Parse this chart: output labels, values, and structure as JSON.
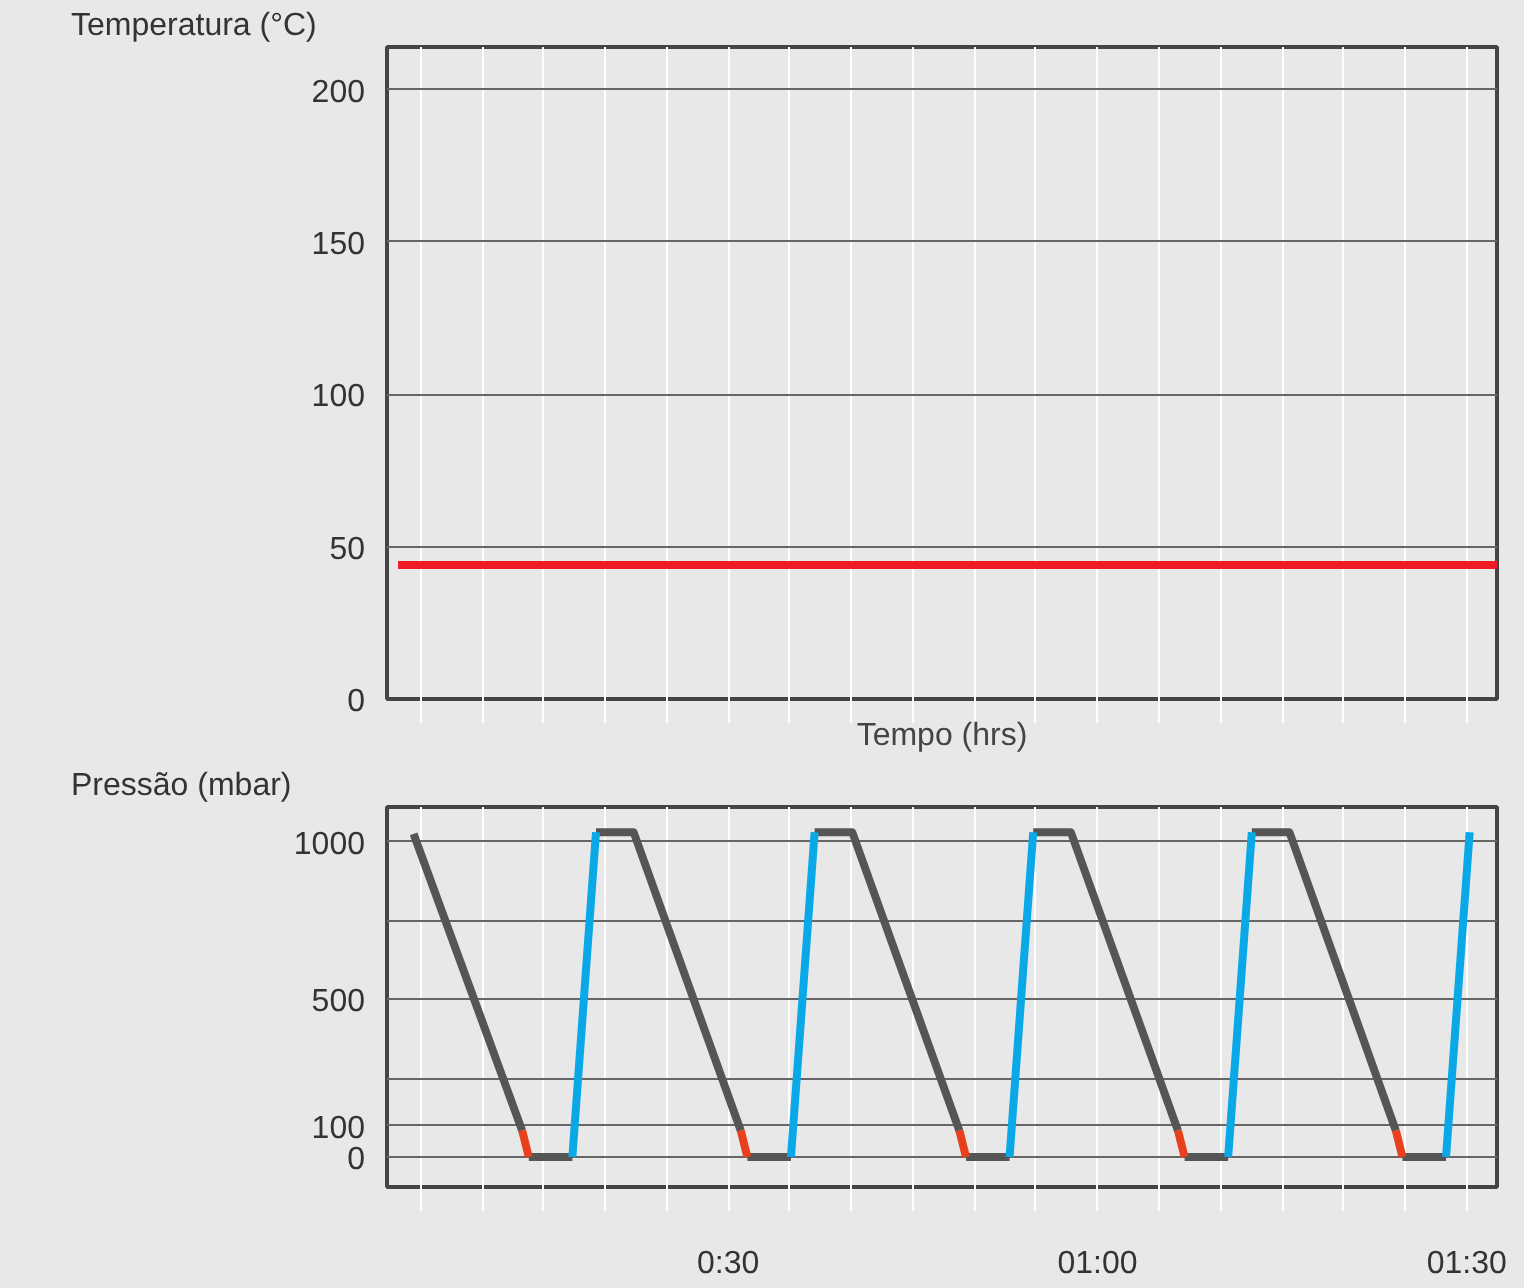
{
  "chart_data": [
    {
      "type": "line",
      "ylabel": "Temperatura (°C)",
      "xlabel": "Tempo (hrs)",
      "xlim": [
        0.038,
        1.541
      ],
      "ylim": [
        0,
        214
      ],
      "yticks": [
        0,
        50,
        100,
        150,
        200
      ],
      "xticks": [
        {
          "value": 0.0833,
          "label": null
        },
        {
          "value": 0.1667,
          "label": null
        },
        {
          "value": 0.25,
          "label": null
        },
        {
          "value": 0.3333,
          "label": null
        },
        {
          "value": 0.4167,
          "label": null
        },
        {
          "value": 0.5,
          "label": null
        },
        {
          "value": 0.5833,
          "label": null
        },
        {
          "value": 0.6667,
          "label": null
        },
        {
          "value": 0.75,
          "label": null
        },
        {
          "value": 0.8333,
          "label": null
        },
        {
          "value": 0.9167,
          "label": null
        },
        {
          "value": 1,
          "label": null
        },
        {
          "value": 1.0833,
          "label": null
        },
        {
          "value": 1.1667,
          "label": null
        },
        {
          "value": 1.25,
          "label": null
        },
        {
          "value": 1.3333,
          "label": null
        },
        {
          "value": 1.4167,
          "label": null
        },
        {
          "value": 1.5,
          "label": null
        }
      ],
      "tick_labels": "y",
      "grid": true,
      "marker": "none",
      "series": [
        {
          "color": "#ee1c25",
          "x": [
            0.053,
            1.541
          ],
          "values": [
            44,
            44
          ]
        }
      ]
    },
    {
      "type": "line",
      "ylabel": "Pressão (mbar)",
      "xlim": [
        0.038,
        1.541
      ],
      "ylim": [
        -95,
        1110
      ],
      "yticks": [
        0,
        100,
        {
          "value": 250,
          "label": null
        },
        500,
        {
          "value": 750,
          "label": null
        },
        1000
      ],
      "xticks": [
        {
          "value": 0.0833,
          "label": null
        },
        {
          "value": 0.1667,
          "label": null
        },
        {
          "value": 0.25,
          "label": null
        },
        {
          "value": 0.3333,
          "label": null
        },
        {
          "value": 0.4167,
          "label": null
        },
        {
          "value": 0.5,
          "label": "0:30"
        },
        {
          "value": 0.5833,
          "label": null
        },
        {
          "value": 0.6667,
          "label": null
        },
        {
          "value": 0.75,
          "label": null
        },
        {
          "value": 0.8333,
          "label": null
        },
        {
          "value": 0.9167,
          "label": null
        },
        {
          "value": 1,
          "label": "01:00"
        },
        {
          "value": 1.0833,
          "label": null
        },
        {
          "value": 1.1667,
          "label": null
        },
        {
          "value": 1.25,
          "label": null
        },
        {
          "value": 1.3333,
          "label": null
        },
        {
          "value": 1.4167,
          "label": null
        },
        {
          "value": 1.5,
          "label": "01:30"
        }
      ],
      "grid": true,
      "marker": "none",
      "series": [
        {
          "color": "#555555",
          "x": [
            0.074,
            0.221,
            0.225,
            0.23,
            0.289,
            0.305,
            0.321,
            0.372,
            0.517,
            0.521,
            0.526,
            0.585,
            0.601,
            0.617,
            0.668,
            0.813,
            0.817,
            0.822,
            0.881,
            0.897,
            0.913,
            0.964,
            1.109,
            1.113,
            1.118,
            1.177,
            1.193,
            1.209,
            1.26,
            1.404,
            1.408,
            1.413,
            1.472
          ],
          "values": [
            1025,
            84,
            null,
            0,
            0,
            null,
            1030,
            1030,
            84,
            null,
            0,
            0,
            null,
            1030,
            1030,
            84,
            null,
            0,
            0,
            null,
            1030,
            1030,
            84,
            null,
            0,
            0,
            null,
            1030,
            1030,
            84,
            null,
            0,
            0
          ]
        },
        {
          "color": "#e8401c",
          "x": [
            0.221,
            0.23,
            0.24,
            0.517,
            0.526,
            0.53,
            0.813,
            0.822,
            0.83,
            1.109,
            1.118,
            1.12,
            1.404,
            1.413
          ],
          "values": [
            84,
            0,
            null,
            84,
            0,
            null,
            84,
            0,
            null,
            84,
            0,
            null,
            84,
            0
          ]
        },
        {
          "color": "#0aa8e6",
          "x": [
            0.289,
            0.321,
            0.33,
            0.585,
            0.617,
            0.63,
            0.881,
            0.913,
            0.92,
            1.177,
            1.209,
            1.22,
            1.472,
            1.504
          ],
          "values": [
            0,
            1030,
            null,
            0,
            1030,
            null,
            0,
            1030,
            null,
            0,
            1030,
            null,
            0,
            1030
          ]
        }
      ]
    }
  ]
}
